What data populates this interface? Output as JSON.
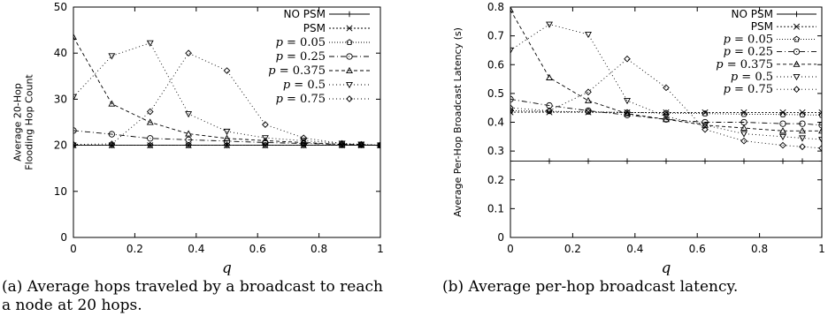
{
  "chart_data": [
    {
      "type": "line",
      "panel": "a",
      "xlabel": "q",
      "ylabel": "Average 20-Hop Flooding Hop Count",
      "ylabel_lines": [
        "Average 20-Hop",
        "Flooding Hop Count"
      ],
      "xlim": [
        0,
        1
      ],
      "ylim": [
        0,
        50
      ],
      "xticks": [
        0,
        0.2,
        0.4,
        0.6,
        0.8,
        1
      ],
      "xtick_labels": [
        "0",
        "0.2",
        "0.4",
        "0.6",
        "0.8",
        "1"
      ],
      "yticks": [
        0,
        10,
        20,
        30,
        40,
        50
      ],
      "ytick_labels": [
        "0",
        "10",
        "20",
        "30",
        "40",
        "50"
      ],
      "grid": false,
      "legend_position": "top-right",
      "x": [
        0,
        0.125,
        0.25,
        0.375,
        0.5,
        0.625,
        0.75,
        0.875,
        0.9375,
        1
      ],
      "series": [
        {
          "name": "NO PSM",
          "marker": "plus",
          "dash": "",
          "values": [
            20,
            20,
            20,
            20,
            20,
            20,
            20,
            20,
            20,
            20
          ]
        },
        {
          "name": "PSM",
          "marker": "cross",
          "dash": "2,2",
          "values": [
            20,
            20,
            20,
            20,
            20,
            20,
            20,
            20,
            20,
            20
          ]
        },
        {
          "name": "p = 0.05",
          "marker": "pentagon",
          "dash": "1,2",
          "values": [
            20,
            20,
            20,
            20,
            20,
            20,
            20,
            20,
            20,
            20
          ]
        },
        {
          "name": "p = 0.25",
          "marker": "circle",
          "dash": "6,3,1,3",
          "values": [
            23.2,
            22.4,
            21.5,
            21.2,
            20.9,
            20.6,
            20.4,
            20.2,
            20.1,
            20
          ]
        },
        {
          "name": "p = 0.375",
          "marker": "triangle-up",
          "dash": "4,3",
          "values": [
            43.5,
            29,
            25,
            22.5,
            21.5,
            21,
            20.6,
            20.2,
            20.1,
            20
          ]
        },
        {
          "name": "p = 0.5",
          "marker": "triangle-down",
          "dash": "1,3",
          "values": [
            30.5,
            39.4,
            42.2,
            26.8,
            23,
            21.6,
            21,
            20.4,
            20.2,
            20
          ]
        },
        {
          "name": "p = 0.75",
          "marker": "diamond",
          "dash": "1,3",
          "values": [
            20.2,
            20.3,
            27.3,
            40,
            36.2,
            24.5,
            21.6,
            20.4,
            20.2,
            20
          ]
        }
      ],
      "legend_entries": [
        {
          "prefix": "",
          "value": "NO PSM",
          "italic": false
        },
        {
          "prefix": "",
          "value": "PSM",
          "italic": false
        },
        {
          "prefix": "p = ",
          "value": "0.05",
          "italic": true
        },
        {
          "prefix": "p = ",
          "value": "0.25",
          "italic": true
        },
        {
          "prefix": "p = ",
          "value": "0.375",
          "italic": true
        },
        {
          "prefix": "p = ",
          "value": "0.5",
          "italic": true
        },
        {
          "prefix": "p = ",
          "value": "0.75",
          "italic": true
        }
      ]
    },
    {
      "type": "line",
      "panel": "b",
      "xlabel": "q",
      "ylabel": "Average Per-Hop Broadcast Latency (s)",
      "ylabel_lines": [
        "Average Per-Hop Broadcast Latency (s)"
      ],
      "xlim": [
        0,
        1
      ],
      "ylim": [
        0,
        0.8
      ],
      "xticks": [
        0,
        0.2,
        0.4,
        0.6,
        0.8,
        1
      ],
      "xtick_labels": [
        "0",
        "0.2",
        "0.4",
        "0.6",
        "0.8",
        "1"
      ],
      "yticks": [
        0,
        0.1,
        0.2,
        0.3,
        0.4,
        0.5,
        0.6,
        0.7,
        0.8
      ],
      "ytick_labels": [
        "0",
        "0.1",
        "0.2",
        "0.3",
        "0.4",
        "0.5",
        "0.6",
        "0.7",
        "0.8"
      ],
      "grid": false,
      "legend_position": "top-right",
      "x": [
        0,
        0.125,
        0.25,
        0.375,
        0.5,
        0.625,
        0.75,
        0.875,
        0.9375,
        1
      ],
      "series": [
        {
          "name": "NO PSM",
          "marker": "plus",
          "dash": "",
          "values": [
            0.265,
            0.265,
            0.265,
            0.265,
            0.265,
            0.265,
            0.265,
            0.265,
            0.265,
            0.265
          ]
        },
        {
          "name": "PSM",
          "marker": "cross",
          "dash": "2,2",
          "values": [
            0.435,
            0.435,
            0.435,
            0.434,
            0.434,
            0.434,
            0.434,
            0.434,
            0.434,
            0.434
          ]
        },
        {
          "name": "p = 0.05",
          "marker": "pentagon",
          "dash": "1,2",
          "values": [
            0.44,
            0.438,
            0.436,
            0.434,
            0.432,
            0.43,
            0.428,
            0.427,
            0.426,
            0.425
          ]
        },
        {
          "name": "p = 0.25",
          "marker": "circle",
          "dash": "6,3,1,3",
          "values": [
            0.48,
            0.458,
            0.44,
            0.425,
            0.41,
            0.4,
            0.4,
            0.395,
            0.395,
            0.39
          ]
        },
        {
          "name": "p = 0.375",
          "marker": "triangle-up",
          "dash": "4,3",
          "values": [
            0.79,
            0.555,
            0.475,
            0.43,
            0.41,
            0.39,
            0.38,
            0.37,
            0.37,
            0.37
          ]
        },
        {
          "name": "p = 0.5",
          "marker": "triangle-down",
          "dash": "1,3",
          "values": [
            0.65,
            0.74,
            0.705,
            0.475,
            0.42,
            0.39,
            0.36,
            0.35,
            0.345,
            0.34
          ]
        },
        {
          "name": "p = 0.75",
          "marker": "diamond",
          "dash": "1,3",
          "values": [
            0.45,
            0.44,
            0.505,
            0.62,
            0.52,
            0.375,
            0.335,
            0.32,
            0.315,
            0.31
          ]
        }
      ],
      "legend_entries": [
        {
          "prefix": "",
          "value": "NO PSM",
          "italic": false
        },
        {
          "prefix": "",
          "value": "PSM",
          "italic": false
        },
        {
          "prefix": "p = ",
          "value": "0.05",
          "italic": true
        },
        {
          "prefix": "p = ",
          "value": "0.25",
          "italic": true
        },
        {
          "prefix": "p = ",
          "value": "0.375",
          "italic": true
        },
        {
          "prefix": "p = ",
          "value": "0.5",
          "italic": true
        },
        {
          "prefix": "p = ",
          "value": "0.75",
          "italic": true
        }
      ]
    }
  ],
  "captions": {
    "a": "(a) Average hops traveled by a broadcast to reach a node at 20 hops.",
    "b": "(b) Average per-hop broadcast latency."
  }
}
